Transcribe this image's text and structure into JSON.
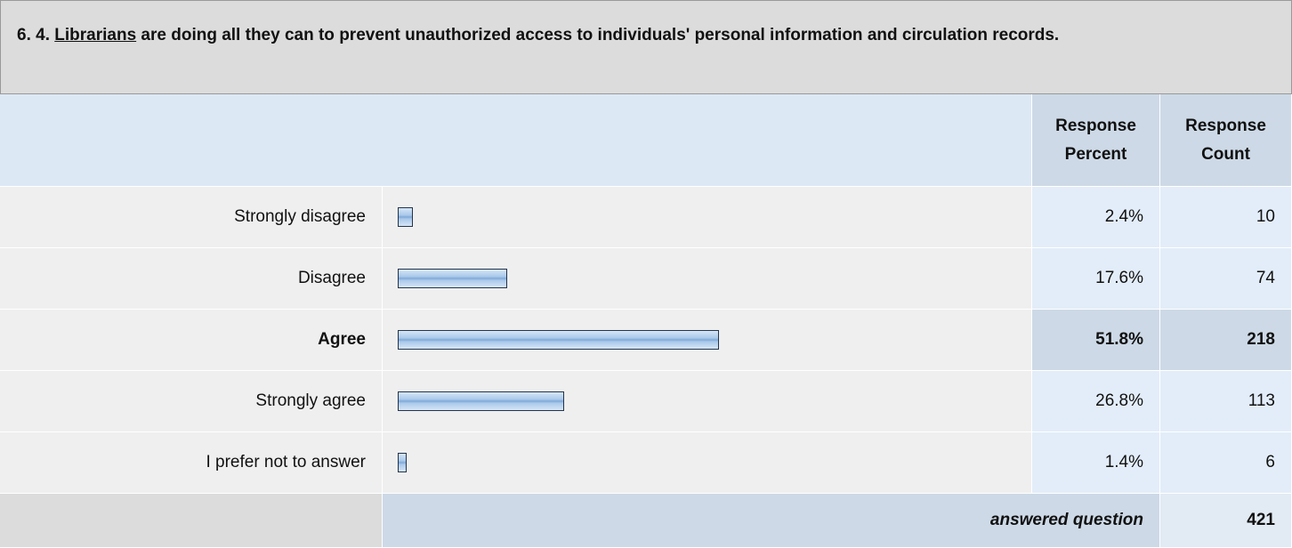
{
  "question": {
    "number": "6. 4.",
    "keyword": "Librarians",
    "text": "are doing all they can to prevent unauthorized access to individuals' personal information and circulation records."
  },
  "columns": [
    "Response Percent",
    "Response Count"
  ],
  "rows": [
    {
      "label": "Strongly disagree",
      "percent": 2.4,
      "percent_label": "2.4%",
      "count": 10
    },
    {
      "label": "Disagree",
      "percent": 17.6,
      "percent_label": "17.6%",
      "count": 74
    },
    {
      "label": "Agree",
      "percent": 51.8,
      "percent_label": "51.8%",
      "count": 218
    },
    {
      "label": "Strongly agree",
      "percent": 26.8,
      "percent_label": "26.8%",
      "count": 113
    },
    {
      "label": "I prefer not to answer",
      "percent": 1.4,
      "percent_label": "1.4%",
      "count": 6
    }
  ],
  "total": {
    "label": "answered question",
    "count": 421
  }
}
